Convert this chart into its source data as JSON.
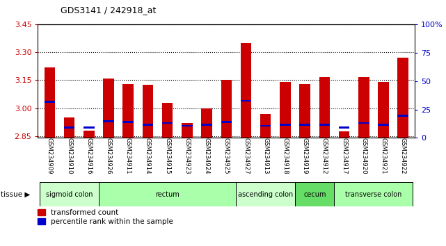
{
  "title": "GDS3141 / 242918_at",
  "samples": [
    "GSM234909",
    "GSM234910",
    "GSM234916",
    "GSM234926",
    "GSM234911",
    "GSM234914",
    "GSM234915",
    "GSM234923",
    "GSM234924",
    "GSM234925",
    "GSM234927",
    "GSM234913",
    "GSM234918",
    "GSM234919",
    "GSM234912",
    "GSM234917",
    "GSM234920",
    "GSM234921",
    "GSM234922"
  ],
  "red_values": [
    3.22,
    2.95,
    2.88,
    3.16,
    3.13,
    3.125,
    3.03,
    2.92,
    3.0,
    3.15,
    3.35,
    2.97,
    3.14,
    3.13,
    3.165,
    2.875,
    3.165,
    3.14,
    3.27
  ],
  "blue_values": [
    3.035,
    2.895,
    2.895,
    2.93,
    2.925,
    2.91,
    2.92,
    2.905,
    2.91,
    2.925,
    3.04,
    2.905,
    2.91,
    2.91,
    2.91,
    2.895,
    2.92,
    2.91,
    2.96
  ],
  "ymin": 2.84,
  "ymax": 3.45,
  "yticks": [
    2.85,
    3.0,
    3.15,
    3.3,
    3.45
  ],
  "right_ticks": [
    0,
    25,
    50,
    75,
    100
  ],
  "right_tick_vals": [
    2.84,
    2.9925,
    3.145,
    3.2975,
    3.45
  ],
  "tissue_groups": [
    {
      "label": "sigmoid colon",
      "start": 0,
      "end": 3,
      "color": "#ccffcc"
    },
    {
      "label": "rectum",
      "start": 3,
      "end": 10,
      "color": "#aaffaa"
    },
    {
      "label": "ascending colon",
      "start": 10,
      "end": 13,
      "color": "#ccffcc"
    },
    {
      "label": "cecum",
      "start": 13,
      "end": 15,
      "color": "#66dd66"
    },
    {
      "label": "transverse colon",
      "start": 15,
      "end": 19,
      "color": "#aaffaa"
    }
  ],
  "bar_color": "#cc0000",
  "blue_color": "#0000cc",
  "bar_width": 0.55,
  "tick_label_color": "#cc0000",
  "right_tick_color": "#0000cc"
}
